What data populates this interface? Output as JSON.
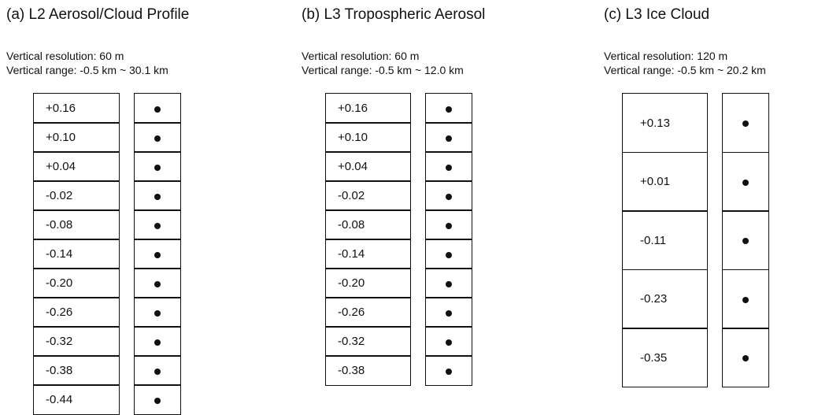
{
  "panels": [
    {
      "title": "(a) L2 Aerosol/Cloud Profile",
      "resolution": "Vertical resolution: 60 m",
      "range": "Vertical range: -0.5 km ~ 30.1 km",
      "cells": [
        "+0.16",
        "+0.10",
        "+0.04",
        "-0.02",
        "-0.08",
        "-0.14",
        "-0.20",
        "-0.26",
        "-0.32",
        "-0.38",
        "-0.44"
      ]
    },
    {
      "title": "(b) L3 Tropospheric Aerosol",
      "resolution": "Vertical resolution: 60 m",
      "range": "Vertical range: -0.5 km ~ 12.0 km",
      "cells": [
        "+0.16",
        "+0.10",
        "+0.04",
        "-0.02",
        "-0.08",
        "-0.14",
        "-0.20",
        "-0.26",
        "-0.32",
        "-0.38"
      ]
    },
    {
      "title": "(c) L3 Ice Cloud",
      "resolution": "Vertical resolution: 120 m",
      "range": "Vertical range: -0.5 km ~ 20.2 km",
      "cells": [
        "+0.13",
        "+0.01",
        "-0.11",
        "-0.23",
        "-0.35"
      ]
    }
  ]
}
